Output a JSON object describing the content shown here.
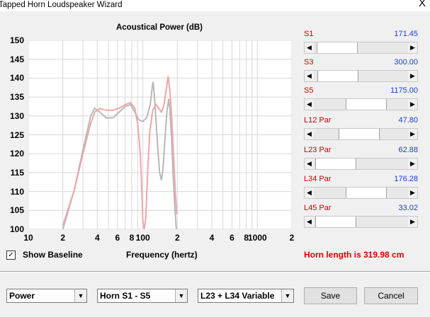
{
  "window": {
    "title": "Tapped Horn Loudspeaker Wizard",
    "close_glyph": "X"
  },
  "chart_data": {
    "type": "line",
    "title": "Acoustical Power (dB)",
    "xlabel": "Frequency (hertz)",
    "ylabel": "",
    "x_scale": "log",
    "xlim": [
      10,
      2000
    ],
    "ylim": [
      100,
      150
    ],
    "yticks": [
      "150",
      "145",
      "140",
      "135",
      "130",
      "125",
      "120",
      "115",
      "110",
      "105",
      "100"
    ],
    "xticks": [
      {
        "value": 10,
        "label": "10"
      },
      {
        "value": 20,
        "label": "2"
      },
      {
        "value": 40,
        "label": "4"
      },
      {
        "value": 60,
        "label": "6"
      },
      {
        "value": 80,
        "label": "8"
      },
      {
        "value": 100,
        "label": "100"
      },
      {
        "value": 200,
        "label": "2"
      },
      {
        "value": 400,
        "label": "4"
      },
      {
        "value": 600,
        "label": "6"
      },
      {
        "value": 800,
        "label": "8"
      },
      {
        "value": 1000,
        "label": "1000"
      },
      {
        "value": 2000,
        "label": "2"
      }
    ],
    "grid": true,
    "series": [
      {
        "role": "baseline",
        "color": "#b8b8b8",
        "points": [
          [
            20,
            100
          ],
          [
            25,
            110
          ],
          [
            30,
            121
          ],
          [
            35,
            130
          ],
          [
            38,
            132
          ],
          [
            42,
            131
          ],
          [
            48,
            129.5
          ],
          [
            55,
            129.5
          ],
          [
            62,
            131
          ],
          [
            70,
            132.5
          ],
          [
            78,
            133
          ],
          [
            85,
            131
          ],
          [
            92,
            129
          ],
          [
            100,
            128.5
          ],
          [
            108,
            129.5
          ],
          [
            116,
            133
          ],
          [
            121,
            138
          ],
          [
            123,
            139
          ],
          [
            127,
            134
          ],
          [
            132,
            126
          ],
          [
            136,
            120
          ],
          [
            140,
            115
          ],
          [
            145,
            113
          ],
          [
            150,
            116
          ],
          [
            156,
            124
          ],
          [
            162,
            131
          ],
          [
            168,
            134.5
          ],
          [
            172,
            132
          ],
          [
            178,
            124
          ],
          [
            184,
            114
          ],
          [
            190,
            106
          ],
          [
            196,
            100
          ]
        ]
      },
      {
        "role": "current",
        "color": "#f2a6a6",
        "points": [
          [
            20,
            101
          ],
          [
            25,
            110
          ],
          [
            30,
            120
          ],
          [
            35,
            128
          ],
          [
            38,
            131
          ],
          [
            42,
            132
          ],
          [
            48,
            131.5
          ],
          [
            55,
            131.5
          ],
          [
            62,
            132
          ],
          [
            70,
            133
          ],
          [
            78,
            133.5
          ],
          [
            85,
            132
          ],
          [
            90,
            128
          ],
          [
            95,
            120
          ],
          [
            98,
            110
          ],
          [
            100,
            102
          ],
          [
            103,
            100
          ],
          [
            106,
            103
          ],
          [
            110,
            115
          ],
          [
            115,
            126
          ],
          [
            122,
            131.5
          ],
          [
            130,
            133
          ],
          [
            138,
            132
          ],
          [
            145,
            131
          ],
          [
            152,
            132.5
          ],
          [
            160,
            137
          ],
          [
            166,
            140.5
          ],
          [
            172,
            137
          ],
          [
            178,
            130
          ],
          [
            185,
            120
          ],
          [
            192,
            110
          ],
          [
            198,
            104
          ]
        ]
      }
    ]
  },
  "show_baseline": {
    "checked": true,
    "check_glyph": "✓",
    "label": "Show Baseline"
  },
  "horn_length": "Horn length is 319.98 cm",
  "sliders": [
    {
      "label": "S1",
      "value": "171.45",
      "position": 0.05
    },
    {
      "label": "S3",
      "value": "300.00",
      "position": 0.06
    },
    {
      "label": "S5",
      "value": "1175.00",
      "position": 0.6
    },
    {
      "label": "L12  Par",
      "value": "47.80",
      "position": 0.47
    },
    {
      "label": "L23  Par",
      "value": "62.88",
      "position": 0.03
    },
    {
      "label": "L34  Par",
      "value": "176.28",
      "position": 0.6
    },
    {
      "label": "L45  Par",
      "value": "33.02",
      "position": 0.02
    }
  ],
  "dropdowns": {
    "mode": "Power",
    "horn": "Horn S1 - S5",
    "variable": "L23 + L34 Variable"
  },
  "buttons": {
    "save": "Save",
    "cancel": "Cancel"
  },
  "glyphs": {
    "left_arrow": "◀",
    "right_arrow": "▶",
    "dropdown": "▼"
  }
}
